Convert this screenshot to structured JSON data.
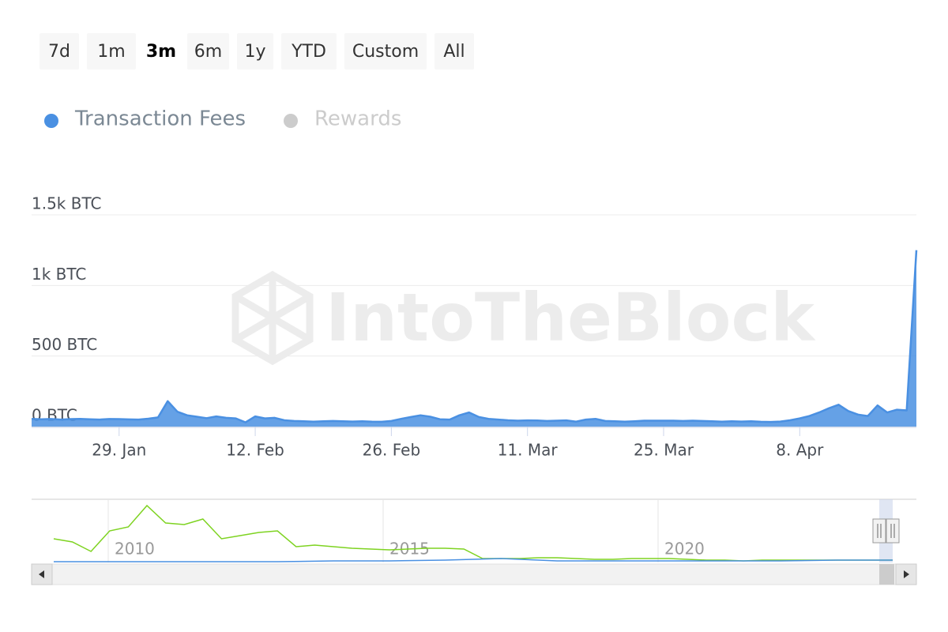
{
  "range_selector": {
    "buttons": [
      "7d",
      "1m",
      "3m",
      "6m",
      "1y",
      "YTD",
      "Custom",
      "All"
    ],
    "selected": 2
  },
  "watermark": "IntoTheBlock",
  "chart_data": {
    "type": "area",
    "categories": [
      null,
      null,
      null,
      null,
      null,
      null,
      null,
      null,
      null,
      "29. Jan",
      null,
      null,
      null,
      null,
      null,
      null,
      null,
      null,
      null,
      null,
      null,
      null,
      null,
      "12. Feb",
      null,
      null,
      null,
      null,
      null,
      null,
      null,
      null,
      null,
      null,
      null,
      null,
      null,
      "26. Feb",
      null,
      null,
      null,
      null,
      null,
      null,
      null,
      null,
      null,
      null,
      null,
      null,
      null,
      "11. Mar",
      null,
      null,
      null,
      null,
      null,
      null,
      null,
      null,
      null,
      null,
      null,
      null,
      null,
      "25. Mar",
      null,
      null,
      null,
      null,
      null,
      null,
      null,
      null,
      null,
      null,
      null,
      null,
      null,
      "8. Apr",
      null,
      null,
      null,
      null,
      null,
      null,
      null,
      null,
      null,
      null,
      null,
      null
    ],
    "series": [
      {
        "name": "Transaction Fees",
        "color": "#4a90e2",
        "visible": true,
        "values": [
          55,
          52,
          54,
          50,
          53,
          55,
          52,
          50,
          54,
          53,
          51,
          50,
          56,
          65,
          180,
          105,
          80,
          70,
          60,
          72,
          62,
          58,
          30,
          72,
          58,
          62,
          45,
          40,
          38,
          35,
          38,
          40,
          38,
          36,
          38,
          35,
          34,
          40,
          55,
          68,
          80,
          70,
          52,
          50,
          80,
          100,
          68,
          55,
          50,
          45,
          42,
          44,
          43,
          40,
          42,
          44,
          35,
          50,
          55,
          40,
          38,
          35,
          38,
          42,
          42,
          42,
          42,
          40,
          42,
          40,
          38,
          35,
          38,
          36,
          38,
          34,
          33,
          36,
          45,
          58,
          75,
          100,
          130,
          155,
          110,
          85,
          75,
          150,
          100,
          120,
          115,
          1250
        ]
      },
      {
        "name": "Rewards",
        "color": "#cccccc",
        "visible": false
      }
    ],
    "ylim": [
      0,
      1500
    ],
    "yticks": [
      {
        "value": 0,
        "label": "0 BTC"
      },
      {
        "value": 500,
        "label": "500 BTC"
      },
      {
        "value": 1000,
        "label": "1k BTC"
      },
      {
        "value": 1500,
        "label": "1.5k BTC"
      }
    ],
    "grid": true
  },
  "navigator": {
    "xticks": [
      "2010",
      "2015",
      "2020"
    ],
    "series": [
      {
        "color": "#7ed321",
        "values": [
          30,
          26,
          14,
          40,
          45,
          72,
          50,
          48,
          55,
          30,
          34,
          38,
          40,
          20,
          22,
          20,
          18,
          17,
          16,
          17,
          18,
          18,
          17,
          5,
          5,
          5,
          6,
          6,
          5,
          4,
          4,
          5,
          5,
          5,
          4,
          3,
          3,
          2,
          3,
          3,
          3,
          3,
          3,
          3,
          3,
          3
        ]
      },
      {
        "color": "#4a90e2",
        "values": [
          1,
          1,
          1,
          1,
          1,
          2,
          2,
          3,
          5,
          2,
          2,
          2,
          2,
          2,
          3,
          3
        ]
      }
    ]
  }
}
